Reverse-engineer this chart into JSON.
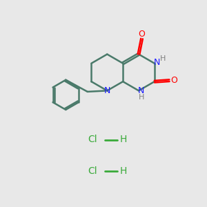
{
  "bg_color": "#e8e8e8",
  "bond_color": "#4a7a6a",
  "N_color": "#1a1aff",
  "O_color": "#ff0000",
  "H_color": "#808080",
  "Cl_color": "#3aaa3a",
  "line_width": 1.8,
  "figsize": [
    3.0,
    3.0
  ],
  "dpi": 100,
  "xlim": [
    0,
    10
  ],
  "ylim": [
    0,
    10
  ]
}
